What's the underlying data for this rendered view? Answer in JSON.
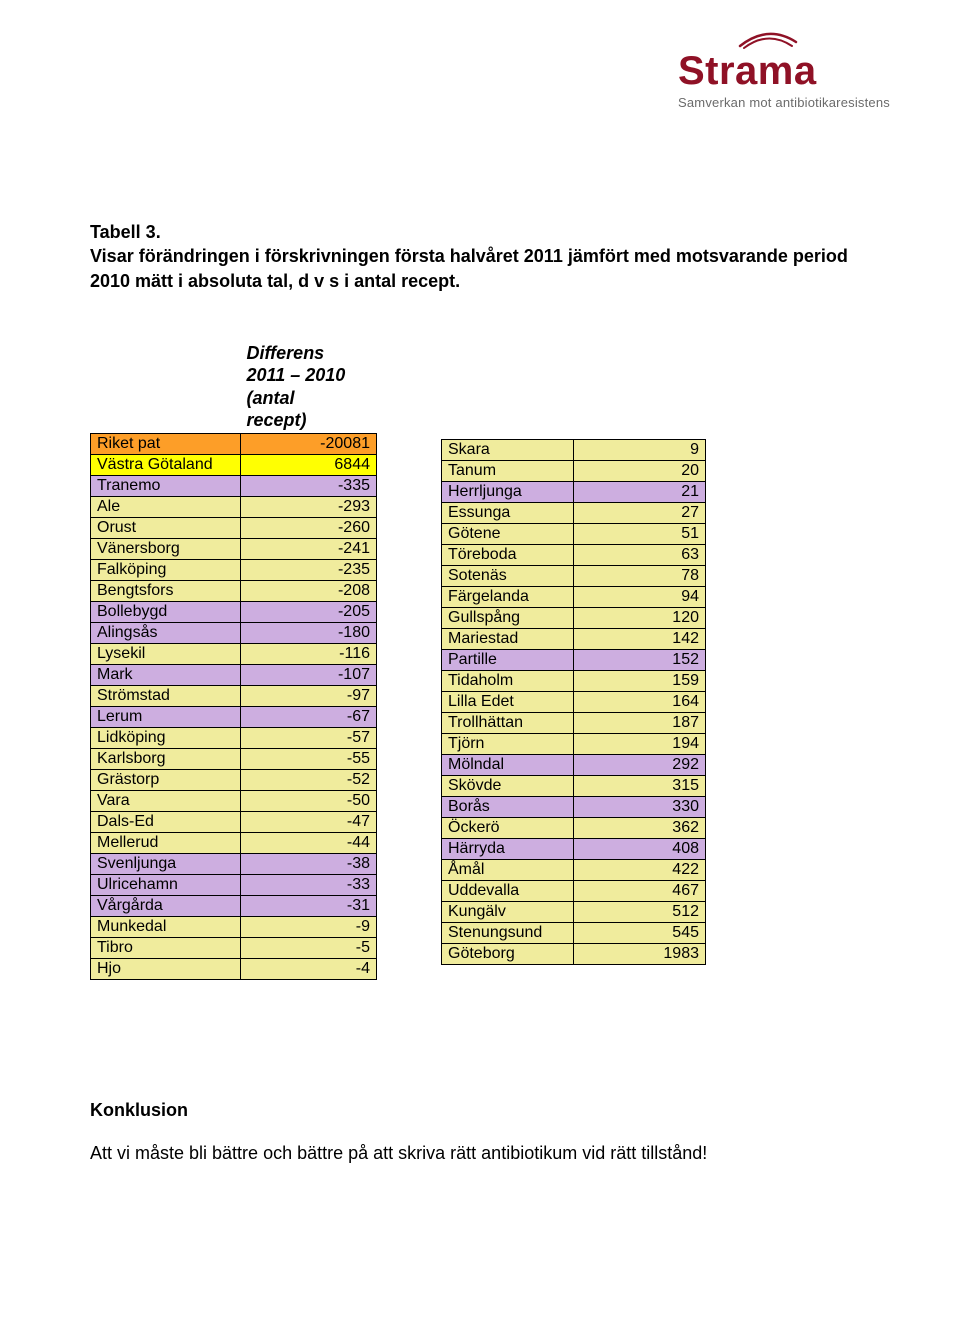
{
  "logo": {
    "word": "Strama",
    "tagline": "Samverkan mot antibiotikaresistens",
    "word_color": "#8f1126",
    "tagline_color": "#6b6b6b",
    "swoosh_color": "#8f1126"
  },
  "heading": {
    "line1": "Tabell 3.",
    "line2": "Visar förändringen i förskrivningen första halvåret 2011 jämfört med motsvarande period 2010 mätt i absoluta tal, d v s i antal recept."
  },
  "table_header": "Differens\n2011 – 2010\n(antal\nrecept)",
  "colors": {
    "orange": "#fd9e28",
    "yellow": "#ffff02",
    "purple": "#cdaee0",
    "khaki": "#f0ec9d",
    "border": "#000000",
    "background": "#ffffff"
  },
  "left_rows": [
    {
      "name": "Riket pat",
      "value": "-20081",
      "cls": "row-orange"
    },
    {
      "name": "Västra Götaland",
      "value": "6844",
      "cls": "row-yellow"
    },
    {
      "name": "Tranemo",
      "value": "-335",
      "cls": "row-purple"
    },
    {
      "name": "Ale",
      "value": "-293",
      "cls": "row-khaki"
    },
    {
      "name": "Orust",
      "value": "-260",
      "cls": "row-khaki"
    },
    {
      "name": "Vänersborg",
      "value": "-241",
      "cls": "row-khaki"
    },
    {
      "name": "Falköping",
      "value": "-235",
      "cls": "row-khaki"
    },
    {
      "name": "Bengtsfors",
      "value": "-208",
      "cls": "row-khaki"
    },
    {
      "name": "Bollebygd",
      "value": "-205",
      "cls": "row-purple"
    },
    {
      "name": "Alingsås",
      "value": "-180",
      "cls": "row-purple"
    },
    {
      "name": "Lysekil",
      "value": "-116",
      "cls": "row-khaki"
    },
    {
      "name": "Mark",
      "value": "-107",
      "cls": "row-purple"
    },
    {
      "name": "Strömstad",
      "value": "-97",
      "cls": "row-khaki"
    },
    {
      "name": "Lerum",
      "value": "-67",
      "cls": "row-purple"
    },
    {
      "name": "Lidköping",
      "value": "-57",
      "cls": "row-khaki"
    },
    {
      "name": "Karlsborg",
      "value": "-55",
      "cls": "row-khaki"
    },
    {
      "name": "Grästorp",
      "value": "-52",
      "cls": "row-khaki"
    },
    {
      "name": "Vara",
      "value": "-50",
      "cls": "row-khaki"
    },
    {
      "name": "Dals-Ed",
      "value": "-47",
      "cls": "row-khaki"
    },
    {
      "name": "Mellerud",
      "value": "-44",
      "cls": "row-khaki"
    },
    {
      "name": "Svenljunga",
      "value": "-38",
      "cls": "row-purple"
    },
    {
      "name": "Ulricehamn",
      "value": "-33",
      "cls": "row-purple"
    },
    {
      "name": "Vårgårda",
      "value": "-31",
      "cls": "row-purple"
    },
    {
      "name": "Munkedal",
      "value": "-9",
      "cls": "row-khaki"
    },
    {
      "name": "Tibro",
      "value": "-5",
      "cls": "row-khaki"
    },
    {
      "name": "Hjo",
      "value": "-4",
      "cls": "row-khaki"
    }
  ],
  "right_rows": [
    {
      "name": "Skara",
      "value": "9",
      "cls": "row-khaki"
    },
    {
      "name": "Tanum",
      "value": "20",
      "cls": "row-khaki"
    },
    {
      "name": "Herrljunga",
      "value": "21",
      "cls": "row-purple"
    },
    {
      "name": "Essunga",
      "value": "27",
      "cls": "row-khaki"
    },
    {
      "name": "Götene",
      "value": "51",
      "cls": "row-khaki"
    },
    {
      "name": "Töreboda",
      "value": "63",
      "cls": "row-khaki"
    },
    {
      "name": "Sotenäs",
      "value": "78",
      "cls": "row-khaki"
    },
    {
      "name": "Färgelanda",
      "value": "94",
      "cls": "row-khaki"
    },
    {
      "name": "Gullspång",
      "value": "120",
      "cls": "row-khaki"
    },
    {
      "name": "Mariestad",
      "value": "142",
      "cls": "row-khaki"
    },
    {
      "name": "Partille",
      "value": "152",
      "cls": "row-purple"
    },
    {
      "name": "Tidaholm",
      "value": "159",
      "cls": "row-khaki"
    },
    {
      "name": "Lilla Edet",
      "value": "164",
      "cls": "row-khaki"
    },
    {
      "name": "Trollhättan",
      "value": "187",
      "cls": "row-khaki"
    },
    {
      "name": "Tjörn",
      "value": "194",
      "cls": "row-khaki"
    },
    {
      "name": "Mölndal",
      "value": "292",
      "cls": "row-purple"
    },
    {
      "name": "Skövde",
      "value": "315",
      "cls": "row-khaki"
    },
    {
      "name": "Borås",
      "value": "330",
      "cls": "row-purple"
    },
    {
      "name": "Öckerö",
      "value": "362",
      "cls": "row-khaki"
    },
    {
      "name": "Härryda",
      "value": "408",
      "cls": "row-purple"
    },
    {
      "name": "Åmål",
      "value": "422",
      "cls": "row-khaki"
    },
    {
      "name": "Uddevalla",
      "value": "467",
      "cls": "row-khaki"
    },
    {
      "name": "Kungälv",
      "value": "512",
      "cls": "row-khaki"
    },
    {
      "name": "Stenungsund",
      "value": "545",
      "cls": "row-khaki"
    },
    {
      "name": "Göteborg",
      "value": "1983",
      "cls": "row-khaki"
    }
  ],
  "conclusion": {
    "title": "Konklusion",
    "text": "Att vi måste bli bättre och bättre på att skriva rätt antibiotikum vid rätt tillstånd!"
  }
}
